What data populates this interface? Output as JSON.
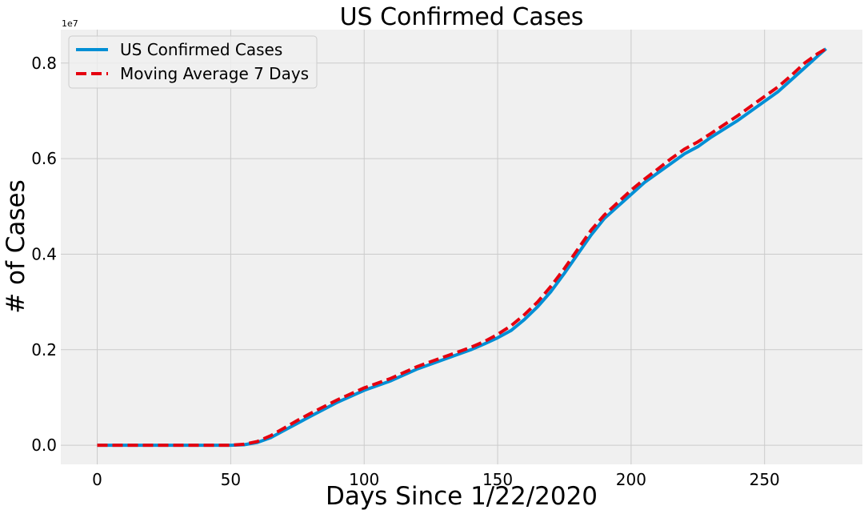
{
  "chart_data": {
    "type": "line",
    "title": "US Confirmed Cases",
    "xlabel": "Days Since 1/22/2020",
    "ylabel": "# of Cases",
    "y_scale_label": "1e7",
    "xlim": [
      -13.65,
      286.65
    ],
    "ylim": [
      -0.04,
      0.87
    ],
    "y_unit_multiplier": 10000000,
    "x_ticks": [
      0,
      50,
      100,
      150,
      200,
      250
    ],
    "y_ticks": [
      0.0,
      0.2,
      0.4,
      0.6,
      0.8
    ],
    "y_tick_labels": [
      "0.0",
      "0.2",
      "0.4",
      "0.6",
      "0.8"
    ],
    "grid": true,
    "legend_position": "top-left",
    "x": [
      0,
      10,
      20,
      30,
      40,
      45,
      50,
      55,
      60,
      65,
      70,
      75,
      80,
      90,
      100,
      110,
      120,
      130,
      140,
      145,
      150,
      155,
      160,
      165,
      170,
      175,
      180,
      185,
      190,
      195,
      200,
      205,
      210,
      215,
      220,
      225,
      230,
      240,
      250,
      255,
      260,
      265,
      270,
      273
    ],
    "series": [
      {
        "name": "US Confirmed Cases",
        "color": "#008fd5",
        "style": "solid",
        "values": [
          0.0,
          0.0,
          0.0,
          0.0,
          0.0,
          0.0,
          0.0,
          0.001,
          0.006,
          0.016,
          0.031,
          0.046,
          0.061,
          0.09,
          0.115,
          0.135,
          0.16,
          0.18,
          0.2,
          0.212,
          0.225,
          0.24,
          0.263,
          0.29,
          0.322,
          0.36,
          0.4,
          0.44,
          0.475,
          0.5,
          0.525,
          0.55,
          0.57,
          0.59,
          0.61,
          0.625,
          0.645,
          0.68,
          0.72,
          0.74,
          0.765,
          0.79,
          0.815,
          0.83
        ]
      },
      {
        "name": "Moving Average 7 Days",
        "color": "#e5000f",
        "style": "dashed",
        "values": [
          0.0,
          0.0,
          0.0,
          0.0,
          0.0,
          0.0,
          0.0,
          0.002,
          0.008,
          0.02,
          0.036,
          0.052,
          0.067,
          0.095,
          0.12,
          0.14,
          0.165,
          0.185,
          0.205,
          0.217,
          0.232,
          0.25,
          0.273,
          0.3,
          0.333,
          0.37,
          0.41,
          0.45,
          0.482,
          0.508,
          0.534,
          0.557,
          0.578,
          0.6,
          0.62,
          0.635,
          0.653,
          0.69,
          0.73,
          0.75,
          0.774,
          0.8,
          0.82,
          0.83
        ]
      }
    ]
  }
}
